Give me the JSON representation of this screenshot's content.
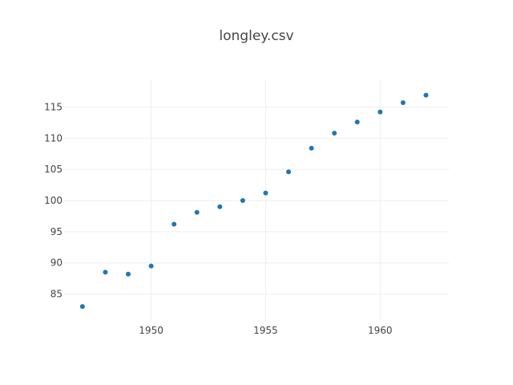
{
  "chart_data": {
    "type": "scatter",
    "title": "longley.csv",
    "xlabel": "",
    "ylabel": "",
    "x": [
      1947,
      1948,
      1949,
      1950,
      1951,
      1952,
      1953,
      1954,
      1955,
      1956,
      1957,
      1958,
      1959,
      1960,
      1961,
      1962
    ],
    "y": [
      83.0,
      88.5,
      88.2,
      89.5,
      96.2,
      98.1,
      99.0,
      100.0,
      101.2,
      104.6,
      108.4,
      110.8,
      112.6,
      114.2,
      115.7,
      116.9
    ],
    "xlim": [
      1946.2,
      1963
    ],
    "ylim": [
      80.7,
      119.3
    ],
    "xticks": [
      1950,
      1955,
      1960
    ],
    "yticks": [
      85,
      90,
      95,
      100,
      105,
      110,
      115
    ],
    "grid": true,
    "legend": "none",
    "marker_color": "#1f77b4"
  }
}
